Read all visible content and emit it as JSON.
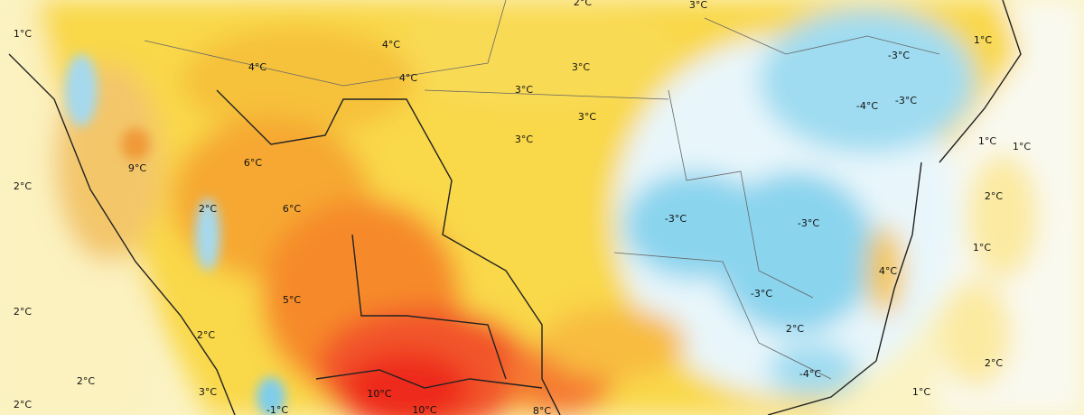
{
  "map": {
    "labels": [
      "1°C",
      "2°C",
      "3°C",
      "4°C",
      "4°C",
      "4°C",
      "3°C",
      "3°C",
      "3°C",
      "3°C",
      "-3°C",
      "-4°C",
      "-3°C",
      "1°C",
      "1°C",
      "1°C",
      "2°C",
      "1°C",
      "9°C",
      "6°C",
      "6°C",
      "2°C",
      "2°C",
      "-3°C",
      "-3°C",
      "4°C",
      "5°C",
      "-3°C",
      "2°C",
      "2°C",
      "2°C",
      "2°C",
      "2°C",
      "-4°C",
      "3°C",
      "10°C",
      "1°C",
      "2°C",
      "-1°C",
      "10°C",
      "8°C"
    ]
  }
}
